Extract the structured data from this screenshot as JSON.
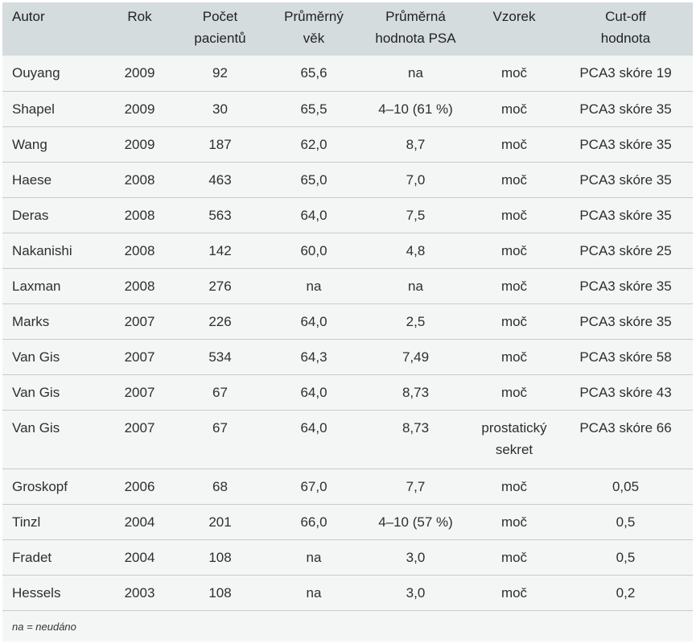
{
  "headers": [
    "Autor",
    "Rok",
    "Počet pacientů",
    "Průměrný věk",
    "Průměrná hodnota PSA",
    "Vzorek",
    "Cut-off hodnota"
  ],
  "rows": [
    [
      "Ouyang",
      "2009",
      "92",
      "65,6",
      "na",
      "moč",
      "PCA3 skóre 19"
    ],
    [
      "Shapel",
      "2009",
      "30",
      "65,5",
      "4–10 (61 %)",
      "moč",
      "PCA3 skóre 35"
    ],
    [
      "Wang",
      "2009",
      "187",
      "62,0",
      "8,7",
      "moč",
      "PCA3 skóre 35"
    ],
    [
      "Haese",
      "2008",
      "463",
      "65,0",
      "7,0",
      "moč",
      "PCA3 skóre 35"
    ],
    [
      "Deras",
      "2008",
      "563",
      "64,0",
      "7,5",
      "moč",
      "PCA3 skóre 35"
    ],
    [
      "Nakanishi",
      "2008",
      "142",
      "60,0",
      "4,8",
      "moč",
      "PCA3 skóre 25"
    ],
    [
      "Laxman",
      "2008",
      "276",
      "na",
      "na",
      "moč",
      "PCA3 skóre 35"
    ],
    [
      "Marks",
      "2007",
      "226",
      "64,0",
      "2,5",
      "moč",
      "PCA3 skóre 35"
    ],
    [
      "Van Gis",
      "2007",
      "534",
      "64,3",
      "7,49",
      "moč",
      "PCA3 skóre 58"
    ],
    [
      "Van Gis",
      "2007",
      "67",
      "64,0",
      "8,73",
      "moč",
      "PCA3 skóre 43"
    ],
    [
      "Van Gis",
      "2007",
      "67",
      "64,0",
      "8,73",
      "prostatický sekret",
      "PCA3 skóre 66"
    ],
    [
      "Groskopf",
      "2006",
      "68",
      "67,0",
      "7,7",
      "moč",
      "0,05"
    ],
    [
      "Tinzl",
      "2004",
      "201",
      "66,0",
      "4–10 (57 %)",
      "moč",
      "0,5"
    ],
    [
      "Fradet",
      "2004",
      "108",
      "na",
      "3,0",
      "moč",
      "0,5"
    ],
    [
      "Hessels",
      "2003",
      "108",
      "na",
      "3,0",
      "moč",
      "0,2"
    ]
  ],
  "footnote": "na = neudáno"
}
